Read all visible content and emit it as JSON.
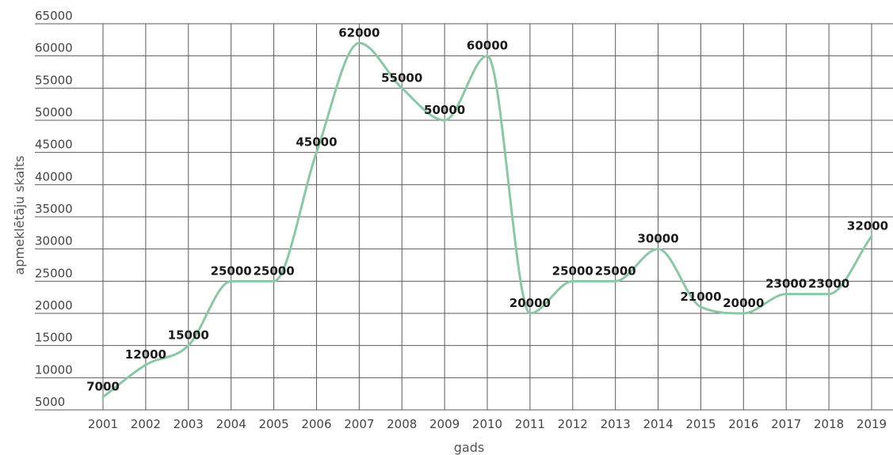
{
  "chart_data": {
    "type": "line",
    "title": "",
    "xlabel": "gads",
    "ylabel": "apmeklētāju skaits",
    "categories": [
      "2001",
      "2002",
      "2003",
      "2004",
      "2005",
      "2006",
      "2007",
      "2008",
      "2009",
      "2010",
      "2011",
      "2012",
      "2013",
      "2014",
      "2015",
      "2016",
      "2017",
      "2018",
      "2019"
    ],
    "series": [
      {
        "values": [
          7000,
          12000,
          15000,
          25000,
          25000,
          45000,
          62000,
          55000,
          50000,
          60000,
          20000,
          25000,
          25000,
          30000,
          21000,
          20000,
          23000,
          23000,
          32000
        ]
      }
    ],
    "ylim": [
      5000,
      65000
    ],
    "yticks": [
      5000,
      10000,
      15000,
      20000,
      25000,
      30000,
      35000,
      40000,
      45000,
      50000,
      55000,
      60000,
      65000
    ],
    "line_color": "#8cc7a5",
    "grid": true,
    "legend": "none",
    "smooth": true,
    "data_labels": true
  }
}
